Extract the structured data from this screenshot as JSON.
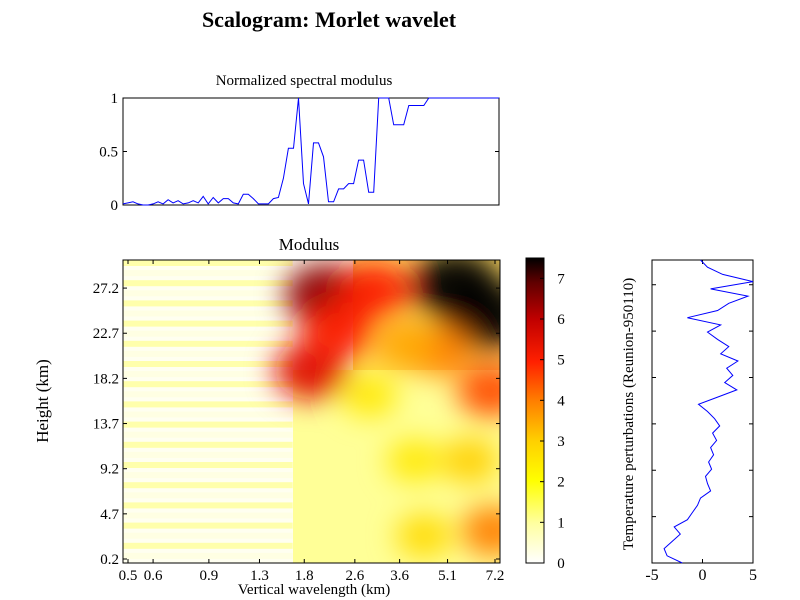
{
  "figure": {
    "title": "Scalogram: Morlet wavelet"
  },
  "chart_data": [
    {
      "type": "line",
      "title": "Normalized spectral modulus",
      "xlabel": "",
      "ylabel": "",
      "ylim": [
        0,
        1
      ],
      "y_ticks": [
        "0",
        "0.5",
        "1"
      ],
      "color": "#0000ff",
      "x": [
        0,
        1,
        2,
        3,
        4,
        5,
        6,
        7,
        8,
        9,
        10,
        11,
        12,
        13,
        14,
        15,
        16,
        17,
        18,
        19,
        20,
        21,
        22,
        23,
        24,
        25,
        26,
        27,
        28,
        29,
        30,
        31,
        32,
        33,
        34,
        35,
        36,
        37,
        38,
        39,
        40,
        41,
        42,
        43,
        44,
        45,
        46,
        47,
        48,
        49,
        50,
        51,
        52,
        53,
        54,
        55,
        56,
        57,
        58,
        59,
        60,
        61,
        62,
        63,
        64,
        65,
        66,
        67,
        68,
        69,
        70,
        71,
        72,
        73,
        74,
        75
      ],
      "values": [
        0.01,
        0.02,
        0.03,
        0.01,
        0,
        0,
        0.01,
        0.03,
        0.01,
        0.05,
        0.02,
        0.04,
        0.01,
        0.02,
        0.04,
        0.02,
        0.08,
        0.01,
        0.07,
        0.02,
        0.06,
        0.06,
        0.02,
        0.01,
        0.1,
        0.1,
        0.06,
        0.01,
        0.01,
        0.01,
        0.06,
        0.07,
        0.25,
        0.53,
        0.53,
        1.0,
        0.2,
        0.01,
        0.58,
        0.58,
        0.45,
        0.03,
        0.03,
        0.15,
        0.15,
        0.2,
        0.2,
        0.42,
        0.42,
        0.12,
        0.12,
        1.0,
        1.0,
        1.0,
        0.75,
        0.75,
        0.75,
        0.93,
        0.93,
        0.93,
        0.93,
        1.0,
        1.0,
        1.0,
        1.0,
        1.0,
        1.0,
        1.0,
        1.0,
        1.0,
        1.0,
        1.0,
        1.0,
        1.0,
        1.0,
        1.0
      ]
    },
    {
      "type": "heatmap",
      "title": "Modulus",
      "xlabel": "Vertical wavelength (km)",
      "ylabel": "Height (km)",
      "x_ticks": [
        "0.5",
        "0.6",
        "0.9",
        "1.3",
        "1.8",
        "2.6",
        "3.6",
        "5.1",
        "7.2"
      ],
      "y_ticks": [
        "0.2",
        "4.7",
        "9.2",
        "13.7",
        "18.2",
        "22.7",
        "27.2"
      ],
      "colormap": "hot (inverted)",
      "clim": [
        0,
        7.5
      ],
      "blobs": [
        {
          "x": "2.1",
          "y": 26.5,
          "value": 6.5
        },
        {
          "x": "1.9",
          "y": 19.0,
          "value": 5.5
        },
        {
          "x": "2.3",
          "y": 23.0,
          "value": 5.0
        },
        {
          "x": "3.0",
          "y": 27.0,
          "value": 5.0
        },
        {
          "x": "5.4",
          "y": 27.5,
          "value": 7.5
        },
        {
          "x": "6.8",
          "y": 24.5,
          "value": 7.5
        },
        {
          "x": "7.0",
          "y": 17.0,
          "value": 4.5
        },
        {
          "x": "7.1",
          "y": 3.0,
          "value": 4.0
        },
        {
          "x": "4.8",
          "y": 21.0,
          "value": 4.0
        },
        {
          "x": "3.8",
          "y": 21.5,
          "value": 3.5
        },
        {
          "x": "2.9",
          "y": 16.5,
          "value": 2.5
        },
        {
          "x": "4.0",
          "y": 10.0,
          "value": 2.5
        },
        {
          "x": "4.3",
          "y": 2.5,
          "value": 2.8
        },
        {
          "x": "6.0",
          "y": 10.0,
          "value": 3.0
        }
      ]
    },
    {
      "type": "heatmap-colorbar",
      "ticks": [
        "0",
        "1",
        "2",
        "3",
        "4",
        "5",
        "6",
        "7"
      ],
      "range": [
        0,
        7.5
      ]
    },
    {
      "type": "line",
      "title": "",
      "xlabel": "",
      "ylabel": "Temperature perturbations (Reunion-950110)",
      "xlim": [
        -5,
        5
      ],
      "x_ticks": [
        "-5",
        "0",
        "5"
      ],
      "color": "#0000ff",
      "y": [
        0.2,
        0.9,
        1.6,
        2.3,
        3.0,
        3.7,
        4.4,
        5.1,
        5.8,
        6.5,
        7.2,
        7.9,
        8.6,
        9.3,
        10.0,
        10.7,
        11.4,
        12.1,
        12.8,
        13.5,
        14.2,
        14.9,
        15.6,
        16.3,
        17.0,
        17.7,
        18.4,
        19.1,
        19.8,
        20.5,
        21.2,
        21.9,
        22.6,
        23.3,
        24.0,
        24.7,
        25.4,
        26.1,
        26.8,
        27.5,
        28.2,
        28.9,
        29.6
      ],
      "values": [
        -2.0,
        -3.5,
        -3.8,
        -3.0,
        -2.2,
        -2.8,
        -1.5,
        -1.0,
        -0.5,
        -0.2,
        0.8,
        0.5,
        0.3,
        0.9,
        0.6,
        1.1,
        0.8,
        1.4,
        1.0,
        1.7,
        1.2,
        0.5,
        -0.4,
        1.5,
        3.4,
        2.2,
        3.0,
        2.4,
        3.5,
        1.8,
        2.6,
        1.5,
        0.5,
        1.8,
        -1.5,
        1.5,
        2.6,
        4.5,
        0.8,
        5.0,
        2.0,
        0.5,
        -0.2
      ]
    }
  ]
}
